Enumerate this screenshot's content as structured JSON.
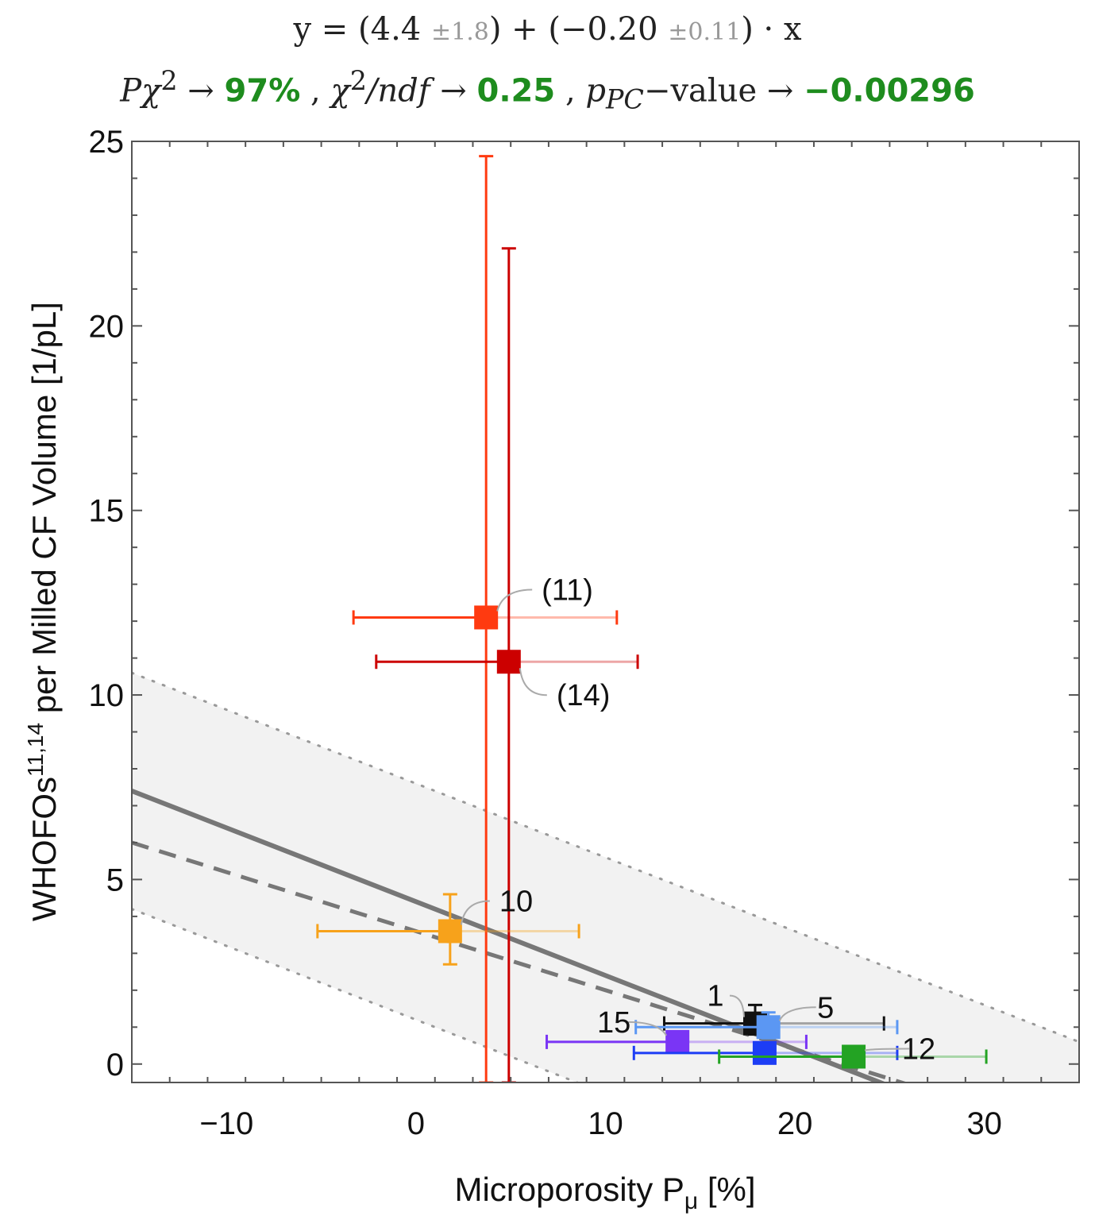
{
  "fit_equation": {
    "prefix": "y = (",
    "intercept": "4.4",
    "intercept_unc": "±1.8",
    "middle": ") + (",
    "slope": "−0.20",
    "slope_unc": "±0.11",
    "suffix": ") · x"
  },
  "fit_stats": {
    "p_chi2_label": "Pχ",
    "p_chi2_value": "97%",
    "chi2_ndf_label": "χ",
    "chi2_ndf_value": "0.25",
    "p_pc_label": "p",
    "p_pc_value": "−0.00296"
  },
  "chart_data": {
    "type": "scatter",
    "xlabel": "Microporosity P",
    "xlabel_sub": "μ",
    "xlabel_unit": " [%]",
    "ylabel": "WHOFOs",
    "ylabel_sup": "11,14",
    "ylabel_rest": " per Milled CF Volume [1/pL]",
    "xlim": [
      -15,
      35
    ],
    "ylim": [
      -0.5,
      25
    ],
    "xticks": [
      -10,
      0,
      10,
      20,
      30
    ],
    "xtick_labels": [
      "−10",
      "0",
      "10",
      "20",
      "30"
    ],
    "yticks": [
      0,
      5,
      10,
      15,
      20,
      25
    ],
    "ytick_labels": [
      "0",
      "5",
      "10",
      "15",
      "20",
      "25"
    ],
    "fit": {
      "intercept": 4.4,
      "slope": -0.2,
      "band_half_width": 3.2
    },
    "dashed_fit": {
      "intercept": 3.6,
      "slope": -0.16
    },
    "points": [
      {
        "label": "(11)",
        "x": 3.7,
        "y": 12.1,
        "xerr_lo": 7.0,
        "xerr_hi": 6.9,
        "yerr_lo": 12.6,
        "yerr_hi": 12.5,
        "color": "#ff3a10"
      },
      {
        "label": "(14)",
        "x": 4.9,
        "y": 10.9,
        "xerr_lo": 7.0,
        "xerr_hi": 6.8,
        "yerr_lo": 11.4,
        "yerr_hi": 11.2,
        "color": "#cc0000"
      },
      {
        "label": "10",
        "x": 1.8,
        "y": 3.6,
        "xerr_lo": 7.0,
        "xerr_hi": 6.8,
        "yerr_lo": 0.9,
        "yerr_hi": 1.0,
        "color": "#f7a21b"
      },
      {
        "label": "1",
        "x": 17.9,
        "y": 1.1,
        "xerr_lo": 4.8,
        "xerr_hi": 6.8,
        "yerr_lo": 0.3,
        "yerr_hi": 0.5,
        "color": "#111111"
      },
      {
        "label": "5",
        "x": 18.6,
        "y": 1.0,
        "xerr_lo": 7.0,
        "xerr_hi": 6.8,
        "yerr_lo": 0.3,
        "yerr_hi": 0.4,
        "color": "#5b97f3"
      },
      {
        "label": "15",
        "x": 13.8,
        "y": 0.6,
        "xerr_lo": 6.9,
        "xerr_hi": 6.8,
        "yerr_lo": 0.2,
        "yerr_hi": 0.2,
        "color": "#7a35f5"
      },
      {
        "label": "",
        "x": 18.4,
        "y": 0.3,
        "xerr_lo": 6.9,
        "xerr_hi": 7.0,
        "yerr_lo": 0.2,
        "yerr_hi": 0.2,
        "color": "#1d3df5"
      },
      {
        "label": "12",
        "x": 23.1,
        "y": 0.2,
        "xerr_lo": 7.1,
        "xerr_hi": 7.0,
        "yerr_lo": 0.2,
        "yerr_hi": 0.2,
        "color": "#23a323"
      }
    ]
  }
}
